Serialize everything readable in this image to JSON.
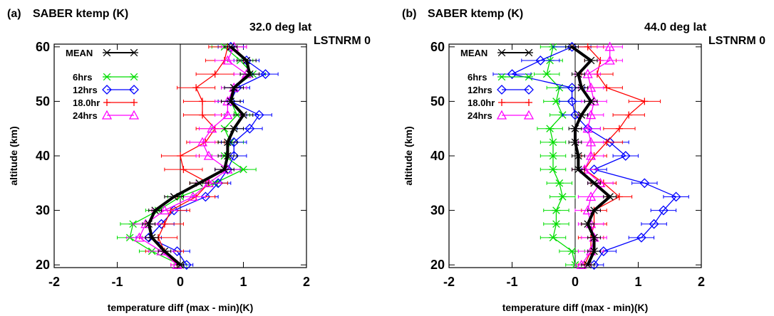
{
  "chart_data": [
    {
      "type": "line",
      "panel_label": "(a)",
      "title": "SABER ktemp (K)",
      "subtitle_lat": "32.0 deg lat",
      "subtitle_lst": "LSTNRM 0",
      "xlabel": "temperature diff (max - min)(K)",
      "ylabel": "altitude (km)",
      "xlim": [
        -2,
        2
      ],
      "ylim": [
        19.5,
        60.5
      ],
      "xticks": [
        "-2",
        "-1",
        "0",
        "1",
        "2"
      ],
      "yticks": [
        "20",
        "30",
        "40",
        "50",
        "60"
      ],
      "legend_position": "top-left",
      "series": [
        {
          "name": "MEAN",
          "color": "#000000",
          "marker": "asterisk",
          "altitude": [
            20,
            22.5,
            25,
            27.5,
            30,
            32.5,
            35,
            37.5,
            40,
            42.5,
            45,
            47.5,
            50,
            52.5,
            55,
            57.5,
            60
          ],
          "values": [
            0.0,
            -0.25,
            -0.45,
            -0.5,
            -0.4,
            -0.1,
            0.3,
            0.7,
            0.75,
            0.75,
            0.85,
            1.0,
            0.8,
            0.85,
            1.1,
            1.05,
            0.8
          ],
          "errors": [
            0.05,
            0.1,
            0.1,
            0.1,
            0.1,
            0.15,
            0.15,
            0.15,
            0.15,
            0.15,
            0.15,
            0.15,
            0.15,
            0.15,
            0.15,
            0.15,
            0.1
          ]
        },
        {
          "name": "6hrs",
          "color": "#00dd00",
          "marker": "asterisk",
          "altitude": [
            20,
            22.5,
            25,
            27.5,
            30,
            32.5,
            35,
            37.5,
            40,
            42.5,
            45,
            47.5,
            50,
            52.5,
            55,
            57.5,
            60
          ],
          "values": [
            0.0,
            -0.45,
            -0.8,
            -0.75,
            -0.35,
            0.0,
            0.55,
            1.0,
            0.7,
            0.8,
            0.7,
            0.9,
            0.8,
            0.85,
            1.15,
            0.95,
            0.7
          ],
          "errors": [
            0.1,
            0.2,
            0.2,
            0.2,
            0.2,
            0.2,
            0.2,
            0.2,
            0.2,
            0.2,
            0.2,
            0.2,
            0.2,
            0.2,
            0.2,
            0.2,
            0.2
          ]
        },
        {
          "name": "12hrs",
          "color": "#0000ff",
          "marker": "diamond",
          "altitude": [
            20,
            22.5,
            25,
            27.5,
            30,
            32.5,
            35,
            37.5,
            40,
            42.5,
            45,
            47.5,
            50,
            52.5,
            55,
            57.5,
            60
          ],
          "values": [
            0.1,
            -0.05,
            -0.5,
            -0.3,
            -0.1,
            0.4,
            0.6,
            0.75,
            0.85,
            0.85,
            1.1,
            1.25,
            0.8,
            0.9,
            1.35,
            1.05,
            0.8
          ],
          "errors": [
            0.1,
            0.2,
            0.2,
            0.2,
            0.2,
            0.2,
            0.2,
            0.2,
            0.2,
            0.2,
            0.2,
            0.2,
            0.2,
            0.2,
            0.2,
            0.2,
            0.2
          ]
        },
        {
          "name": "18.0hr",
          "color": "#ff0000",
          "marker": "plus",
          "altitude": [
            20,
            22.5,
            25,
            27.5,
            30,
            32.5,
            35,
            37.5,
            40,
            42.5,
            45,
            47.5,
            50,
            52.5,
            55,
            57.5,
            60
          ],
          "values": [
            -0.05,
            -0.25,
            -0.35,
            -0.25,
            -0.15,
            0.25,
            0.45,
            0.05,
            0.0,
            0.4,
            0.55,
            0.35,
            0.35,
            0.25,
            0.55,
            0.7,
            0.75
          ],
          "errors": [
            0.1,
            0.3,
            0.3,
            0.3,
            0.3,
            0.3,
            0.3,
            0.3,
            0.3,
            0.3,
            0.3,
            0.3,
            0.3,
            0.3,
            0.3,
            0.3,
            0.3
          ]
        },
        {
          "name": "24hrs",
          "color": "#ff00ff",
          "marker": "triangle",
          "altitude": [
            20,
            22.5,
            25,
            27.5,
            30,
            32.5,
            35,
            37.5,
            40,
            42.5,
            45,
            47.5,
            50,
            52.5,
            55,
            57.5,
            60
          ],
          "values": [
            -0.05,
            -0.3,
            -0.65,
            -0.55,
            -0.25,
            0.2,
            0.45,
            0.75,
            0.45,
            0.35,
            0.5,
            0.75,
            0.75,
            0.85,
            1.05,
            0.75,
            0.85
          ],
          "errors": [
            0.1,
            0.2,
            0.2,
            0.2,
            0.2,
            0.2,
            0.2,
            0.2,
            0.2,
            0.2,
            0.2,
            0.2,
            0.2,
            0.2,
            0.2,
            0.2,
            0.2
          ]
        }
      ]
    },
    {
      "type": "line",
      "panel_label": "(b)",
      "title": "SABER ktemp (K)",
      "subtitle_lat": "44.0 deg lat",
      "subtitle_lst": "LSTNRM 0",
      "xlabel": "temperature diff (max - min)(K)",
      "ylabel": "altitude (km)",
      "xlim": [
        -2,
        2
      ],
      "ylim": [
        19.5,
        60.5
      ],
      "xticks": [
        "-2",
        "-1",
        "0",
        "1",
        "2"
      ],
      "yticks": [
        "20",
        "30",
        "40",
        "50",
        "60"
      ],
      "legend_position": "top-left",
      "series": [
        {
          "name": "MEAN",
          "color": "#000000",
          "marker": "asterisk",
          "altitude": [
            20,
            22.5,
            25,
            27.5,
            30,
            32.5,
            35,
            37.5,
            40,
            42.5,
            45,
            47.5,
            50,
            52.5,
            55,
            57.5,
            60
          ],
          "values": [
            0.2,
            0.3,
            0.3,
            0.2,
            0.3,
            0.55,
            0.3,
            0.05,
            0.05,
            0.0,
            0.0,
            0.1,
            0.25,
            0.1,
            0.05,
            0.25,
            -0.05
          ],
          "errors": [
            0.1,
            0.1,
            0.1,
            0.1,
            0.1,
            0.1,
            0.1,
            0.1,
            0.1,
            0.1,
            0.1,
            0.1,
            0.1,
            0.1,
            0.1,
            0.1,
            0.1
          ]
        },
        {
          "name": "6hrs",
          "color": "#00dd00",
          "marker": "asterisk",
          "altitude": [
            20,
            22.5,
            25,
            27.5,
            30,
            32.5,
            35,
            37.5,
            40,
            42.5,
            45,
            47.5,
            50,
            52.5,
            55,
            57.5,
            60
          ],
          "values": [
            0.0,
            -0.05,
            -0.35,
            -0.3,
            -0.3,
            -0.2,
            -0.25,
            -0.35,
            -0.35,
            -0.35,
            -0.4,
            -0.2,
            -0.3,
            -0.25,
            -0.45,
            -0.4,
            -0.35
          ],
          "errors": [
            0.15,
            0.2,
            0.2,
            0.2,
            0.2,
            0.2,
            0.2,
            0.2,
            0.2,
            0.2,
            0.2,
            0.2,
            0.2,
            0.2,
            0.2,
            0.2,
            0.2
          ]
        },
        {
          "name": "12hrs",
          "color": "#0000ff",
          "marker": "diamond",
          "altitude": [
            20,
            22.5,
            25,
            27.5,
            30,
            32.5,
            35,
            37.5,
            40,
            42.5,
            45,
            47.5,
            50,
            52.5,
            55,
            57.5,
            60
          ],
          "values": [
            0.3,
            0.45,
            1.05,
            1.25,
            1.4,
            1.6,
            1.1,
            0.3,
            0.8,
            0.55,
            0.2,
            0.0,
            -0.05,
            -0.05,
            -1.0,
            -0.55,
            -0.05
          ],
          "errors": [
            0.15,
            0.2,
            0.2,
            0.2,
            0.2,
            0.2,
            0.2,
            0.2,
            0.2,
            0.3,
            0.2,
            0.2,
            0.2,
            0.2,
            0.3,
            0.3,
            0.3
          ]
        },
        {
          "name": "18.0hr",
          "color": "#ff0000",
          "marker": "plus",
          "altitude": [
            20,
            22.5,
            25,
            27.5,
            30,
            32.5,
            35,
            37.5,
            40,
            42.5,
            45,
            47.5,
            50,
            52.5,
            55,
            57.5,
            60
          ],
          "values": [
            0.15,
            0.25,
            0.25,
            0.3,
            0.3,
            0.7,
            0.45,
            0.15,
            0.3,
            0.5,
            0.7,
            0.85,
            1.1,
            0.5,
            0.35,
            0.4,
            0.2
          ],
          "errors": [
            0.1,
            0.2,
            0.2,
            0.2,
            0.2,
            0.2,
            0.2,
            0.2,
            0.2,
            0.25,
            0.25,
            0.25,
            0.25,
            0.25,
            0.25,
            0.25,
            0.25
          ]
        },
        {
          "name": "24hrs",
          "color": "#ff00ff",
          "marker": "triangle",
          "altitude": [
            20,
            22.5,
            25,
            27.5,
            30,
            32.5,
            35,
            37.5,
            40,
            42.5,
            45,
            47.5,
            50,
            52.5,
            55,
            57.5,
            60
          ],
          "values": [
            0.1,
            0.25,
            0.3,
            0.25,
            0.2,
            0.25,
            0.4,
            0.15,
            0.25,
            0.25,
            0.2,
            0.25,
            0.3,
            0.25,
            0.2,
            0.55,
            0.55
          ],
          "errors": [
            0.1,
            0.2,
            0.2,
            0.2,
            0.2,
            0.2,
            0.2,
            0.2,
            0.2,
            0.2,
            0.2,
            0.2,
            0.2,
            0.2,
            0.2,
            0.2,
            0.2
          ]
        }
      ]
    }
  ]
}
